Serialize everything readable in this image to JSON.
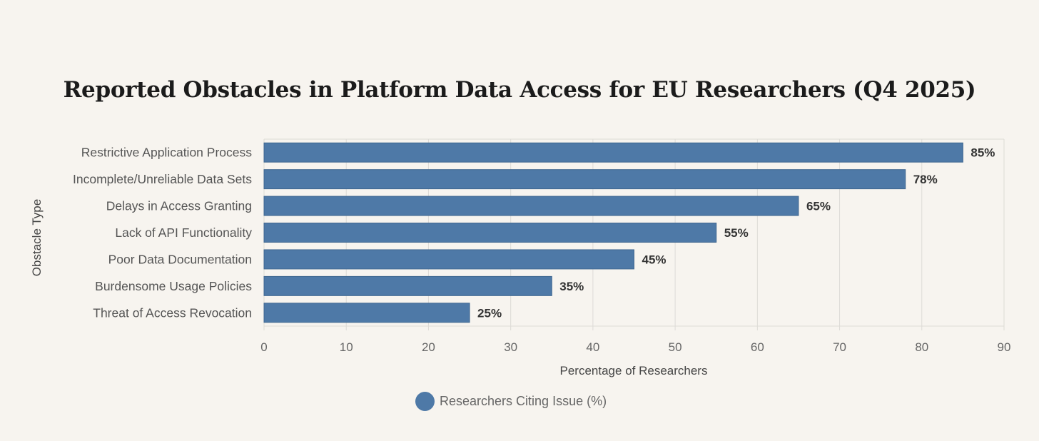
{
  "chart_data": {
    "type": "bar",
    "orientation": "horizontal",
    "title": "Reported Obstacles in Platform Data Access for EU Researchers (Q4 2025)",
    "xlabel": "Percentage of Researchers",
    "ylabel": "Obstacle Type",
    "xlim": [
      0,
      90
    ],
    "x_ticks": [
      "0",
      "10",
      "20",
      "30",
      "40",
      "50",
      "60",
      "70",
      "80",
      "90"
    ],
    "grid": true,
    "legend_position": "bottom",
    "categories": [
      "Restrictive Application Process",
      "Incomplete/Unreliable Data Sets",
      "Delays in Access Granting",
      "Lack of API Functionality",
      "Poor Data Documentation",
      "Burdensome Usage Policies",
      "Threat of Access Revocation"
    ],
    "series": [
      {
        "name": "Researchers Citing Issue (%)",
        "values": [
          85,
          78,
          65,
          55,
          45,
          35,
          25
        ],
        "data_labels": [
          "85%",
          "78%",
          "65%",
          "55%",
          "45%",
          "35%",
          "25%"
        ],
        "color": "#4e79a7"
      }
    ]
  }
}
